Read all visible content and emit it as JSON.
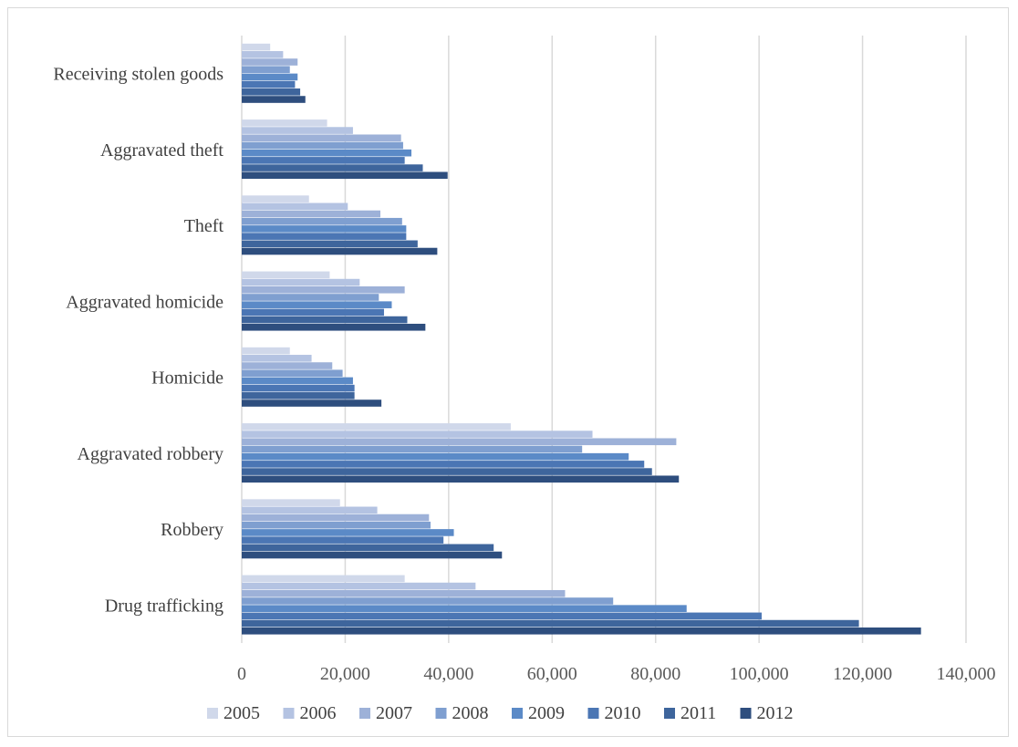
{
  "chart_data": {
    "type": "bar",
    "orientation": "horizontal",
    "title": "",
    "xlabel": "",
    "ylabel": "",
    "categories": [
      "Receiving stolen goods",
      "Aggravated theft",
      "Theft",
      "Aggravated homicide",
      "Homicide",
      "Aggravated robbery",
      "Robbery",
      "Drug trafficking"
    ],
    "xlim": [
      0,
      140000
    ],
    "x_ticks": [
      0,
      20000,
      40000,
      60000,
      80000,
      100000,
      120000,
      140000
    ],
    "x_tick_labels": [
      "0",
      "20,000",
      "40,000",
      "60,000",
      "80,000",
      "100,000",
      "120,000",
      "140,000"
    ],
    "grid": true,
    "legend_position": "bottom",
    "series": [
      {
        "name": "2005",
        "color": "#d0d8ea",
        "values": [
          5500,
          16500,
          13000,
          17000,
          9300,
          52000,
          19000,
          31500
        ]
      },
      {
        "name": "2006",
        "color": "#b4c3e2",
        "values": [
          8000,
          21500,
          20500,
          22800,
          13500,
          67800,
          26200,
          45200
        ]
      },
      {
        "name": "2007",
        "color": "#9db1d8",
        "values": [
          10800,
          30800,
          26800,
          31500,
          17500,
          84000,
          36200,
          62500
        ]
      },
      {
        "name": "2008",
        "color": "#7f9fd0",
        "values": [
          9300,
          31200,
          31000,
          26500,
          19500,
          65800,
          36500,
          71800
        ]
      },
      {
        "name": "2009",
        "color": "#5b8ac7",
        "values": [
          10800,
          32800,
          31800,
          29000,
          21500,
          74800,
          41000,
          86000
        ]
      },
      {
        "name": "2010",
        "color": "#4b76b4",
        "values": [
          10300,
          31500,
          31800,
          27500,
          21800,
          77800,
          39000,
          100500
        ]
      },
      {
        "name": "2011",
        "color": "#3e659c",
        "values": [
          11300,
          35000,
          34000,
          32000,
          21800,
          79300,
          48700,
          119300
        ]
      },
      {
        "name": "2012",
        "color": "#2e4e7e",
        "values": [
          12300,
          39800,
          37800,
          35500,
          27000,
          84500,
          50300,
          131300
        ]
      }
    ]
  }
}
